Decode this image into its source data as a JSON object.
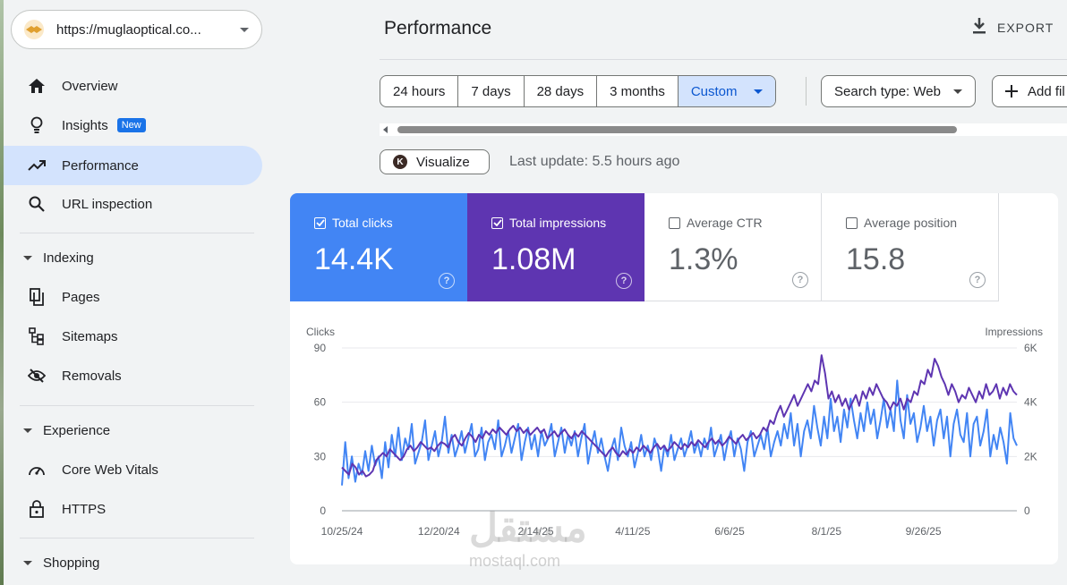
{
  "property": {
    "url": "https://muglaoptical.co..."
  },
  "nav": {
    "overview": "Overview",
    "insights": "Insights",
    "insights_badge": "New",
    "performance": "Performance",
    "url_inspection": "URL inspection",
    "indexing": "Indexing",
    "pages": "Pages",
    "sitemaps": "Sitemaps",
    "removals": "Removals",
    "experience": "Experience",
    "core_web_vitals": "Core Web Vitals",
    "https": "HTTPS",
    "shopping": "Shopping"
  },
  "header": {
    "title": "Performance",
    "export": "EXPORT"
  },
  "filters": {
    "ranges": [
      "24 hours",
      "7 days",
      "28 days",
      "3 months",
      "Custom"
    ],
    "selected": "Custom",
    "search_type": "Search type: Web",
    "add_filter": "Add fil"
  },
  "visualize": {
    "label": "Visualize",
    "k": "K"
  },
  "last_update": "Last update: 5.5 hours ago",
  "metrics": {
    "clicks": {
      "label": "Total clicks",
      "value": "14.4K",
      "checked": true
    },
    "impressions": {
      "label": "Total impressions",
      "value": "1.08M",
      "checked": true
    },
    "ctr": {
      "label": "Average CTR",
      "value": "1.3%",
      "checked": false
    },
    "position": {
      "label": "Average position",
      "value": "15.8",
      "checked": false
    }
  },
  "watermark": {
    "arabic": "مستقل",
    "latin": "mostaql.com"
  },
  "colors": {
    "clicks": "#4285f4",
    "impressions": "#5e35b1",
    "active_nav": "#d3e3fd"
  },
  "chart_data": {
    "type": "line",
    "ylabel_left": "Clicks",
    "ylabel_right": "Impressions",
    "left_ticks": [
      "90",
      "60",
      "30",
      "0"
    ],
    "right_ticks": [
      "6K",
      "4K",
      "2K",
      "0"
    ],
    "ylim_left": [
      0,
      90
    ],
    "ylim_right": [
      0,
      6000
    ],
    "x_ticks": [
      "10/25/24",
      "12/20/24",
      "2/14/25",
      "4/11/25",
      "6/6/25",
      "8/1/25",
      "9/26/25"
    ],
    "x_range": [
      "2024-10-25",
      "2025-11-19"
    ],
    "grid": true,
    "series": [
      {
        "name": "Clicks",
        "axis": "left",
        "color": "#4285f4",
        "values": [
          14,
          38,
          18,
          30,
          16,
          26,
          20,
          33,
          22,
          36,
          25,
          30,
          18,
          38,
          24,
          42,
          30,
          46,
          28,
          40,
          34,
          48,
          26,
          32,
          38,
          50,
          28,
          36,
          44,
          30,
          38,
          52,
          32,
          42,
          30,
          36,
          44,
          32,
          40,
          48,
          30,
          34,
          46,
          28,
          38,
          42,
          34,
          50,
          30,
          36,
          44,
          32,
          40,
          48,
          28,
          38,
          46,
          34,
          42,
          30,
          44,
          36,
          40,
          48,
          30,
          38,
          46,
          32,
          42,
          36,
          44,
          30,
          40,
          48,
          26,
          36,
          44,
          32,
          40,
          30,
          22,
          34,
          40,
          28,
          46,
          36,
          30,
          38,
          24,
          32,
          42,
          30,
          36,
          28,
          40,
          34,
          22,
          36,
          30,
          42,
          28,
          34,
          40,
          30,
          36,
          44,
          32,
          38,
          30,
          40,
          34,
          46,
          30,
          36,
          42,
          28,
          38,
          44,
          30,
          40,
          34,
          22,
          38,
          44,
          30,
          36,
          42,
          34,
          46,
          30,
          38,
          44,
          36,
          48,
          40,
          54,
          36,
          48,
          30,
          44,
          50,
          40,
          58,
          46,
          36,
          52,
          40,
          62,
          44,
          52,
          38,
          56,
          46,
          62,
          50,
          40,
          54,
          44,
          60,
          48,
          56,
          40,
          50,
          62,
          46,
          56,
          44,
          72,
          50,
          40,
          64,
          48,
          54,
          38,
          46,
          58,
          44,
          52,
          36,
          50,
          56,
          40,
          52,
          30,
          48,
          56,
          42,
          38,
          54,
          30,
          48,
          52,
          36,
          44,
          56,
          30,
          42,
          34,
          46,
          38,
          26,
          54,
          40,
          36
        ]
      },
      {
        "name": "Impressions",
        "axis": "left",
        "color": "#5e35b1",
        "values": [
          24,
          22,
          20,
          26,
          24,
          20,
          22,
          19,
          20,
          22,
          28,
          30,
          32,
          30,
          34,
          32,
          30,
          28,
          30,
          34,
          36,
          33,
          35,
          38,
          36,
          34,
          35,
          33,
          36,
          38,
          37,
          35,
          40,
          42,
          38,
          36,
          40,
          43,
          41,
          38,
          42,
          40,
          44,
          42,
          45,
          43,
          46,
          44,
          42,
          45,
          47,
          44,
          46,
          43,
          45,
          42,
          44,
          46,
          43,
          45,
          40,
          42,
          44,
          41,
          43,
          45,
          42,
          40,
          43,
          41,
          44,
          42,
          40,
          38,
          36,
          34,
          32,
          30,
          33,
          35,
          32,
          30,
          33,
          31,
          34,
          32,
          35,
          33,
          36,
          34,
          32,
          35,
          37,
          34,
          36,
          33,
          35,
          38,
          36,
          34,
          37,
          35,
          38,
          36,
          39,
          37,
          35,
          38,
          40,
          37,
          39,
          36,
          38,
          41,
          39,
          37,
          40,
          42,
          39,
          41,
          43,
          40,
          42,
          46,
          44,
          50,
          48,
          54,
          58,
          52,
          56,
          60,
          64,
          58,
          62,
          66,
          70,
          66,
          72,
          70,
          86,
          76,
          62,
          66,
          60,
          64,
          58,
          62,
          56,
          60,
          64,
          58,
          66,
          62,
          68,
          64,
          70,
          66,
          62,
          60,
          56,
          60,
          58,
          62,
          56,
          62,
          60,
          66,
          64,
          72,
          70,
          78,
          74,
          84,
          80,
          74,
          70,
          64,
          70,
          66,
          60,
          64,
          62,
          68,
          64,
          60,
          66,
          62,
          70,
          64,
          66,
          70,
          62,
          68,
          64,
          70,
          66,
          64
        ]
      }
    ]
  }
}
